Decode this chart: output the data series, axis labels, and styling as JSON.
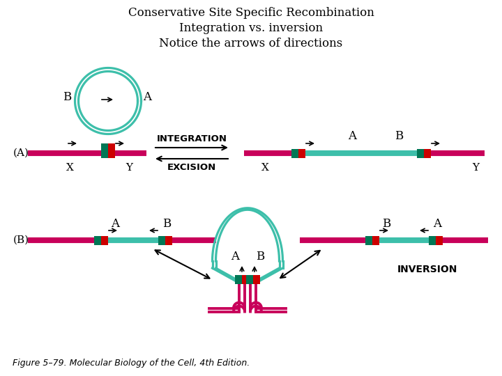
{
  "title_lines": [
    "Conservative Site Specific Recombination",
    "Integration vs. inversion",
    "Notice the arrows of directions"
  ],
  "title_fontsize": 12,
  "fig_bg": "#ffffff",
  "rc": "#c8005a",
  "gc": "#3dbfaa",
  "br": "#cc0000",
  "bg": "#007755",
  "bc": "#000000",
  "caption": "Figure 5–79. Molecular Biology of the Cell, 4th Edition."
}
